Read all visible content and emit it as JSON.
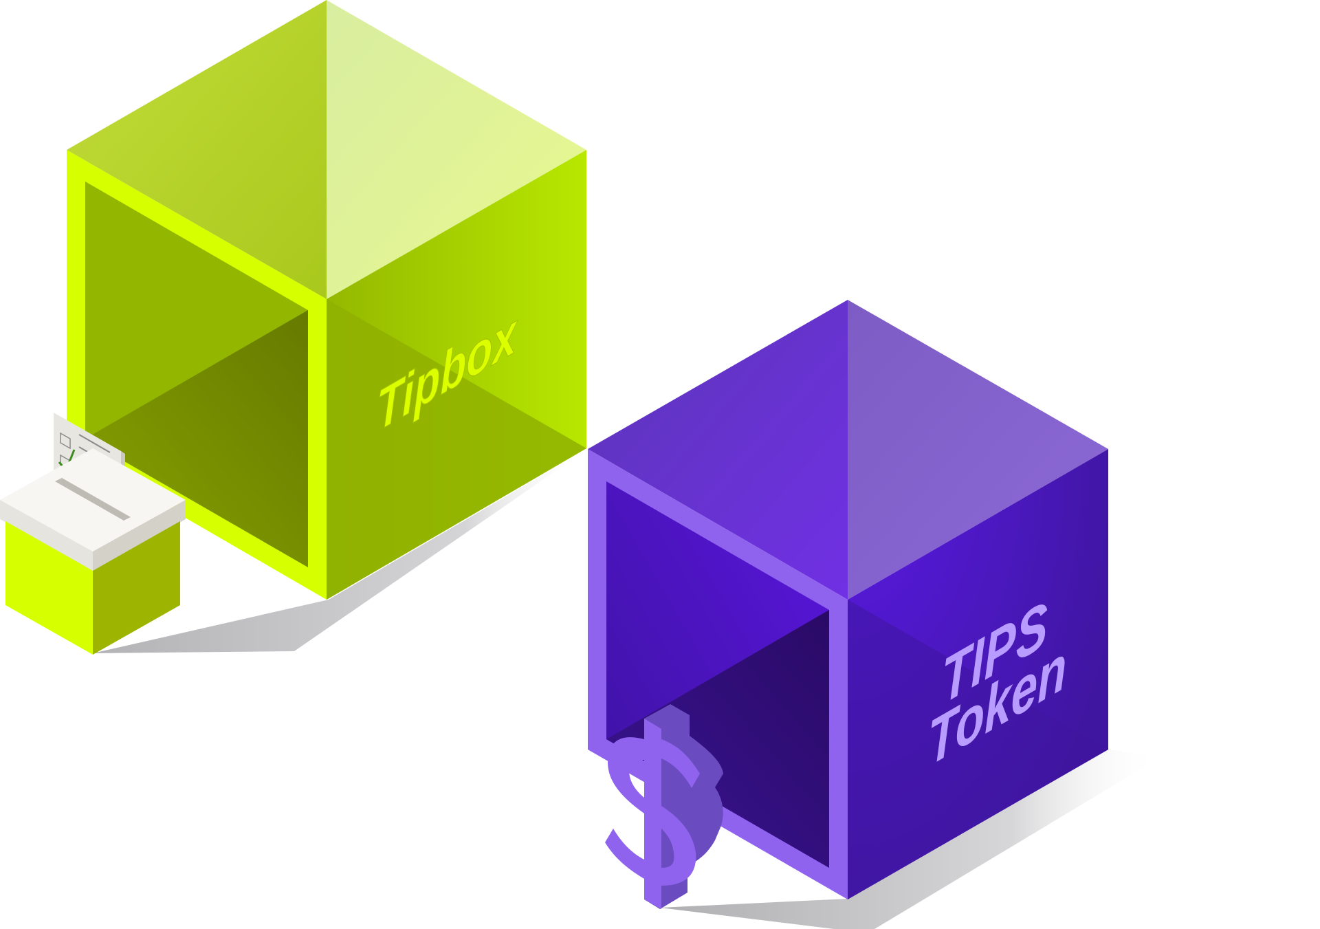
{
  "scene": {
    "background": "#ffffff"
  },
  "cubes": {
    "tipbox": {
      "label": "Tipbox",
      "label_color": "#dcff00",
      "colors": {
        "top_left": "#b5d42c",
        "top_right": "#e4f59a",
        "front_left": "#93b600",
        "front_right": "#b3e000",
        "inner": "#6f8500",
        "frame": "#d6ff00"
      }
    },
    "tips_token": {
      "label_line1": "TIPS",
      "label_line2": "Token",
      "label_color": "#b89cff",
      "colors": {
        "top_left": "#6433c8",
        "top_right": "#8a66cc",
        "front_left": "#4a14b4",
        "front_right": "#4a18b0",
        "inner": "#2e0c72",
        "frame": "#8f63ee"
      }
    }
  },
  "icons": {
    "ballot_box": "ballot-box-icon",
    "dollar_sign": "dollar-sign-icon",
    "checkmark": "checkmark-icon"
  },
  "accent_colors": {
    "lime": "#d6ff00",
    "purple": "#8f63ee",
    "shadow": "#bfbfc2"
  }
}
